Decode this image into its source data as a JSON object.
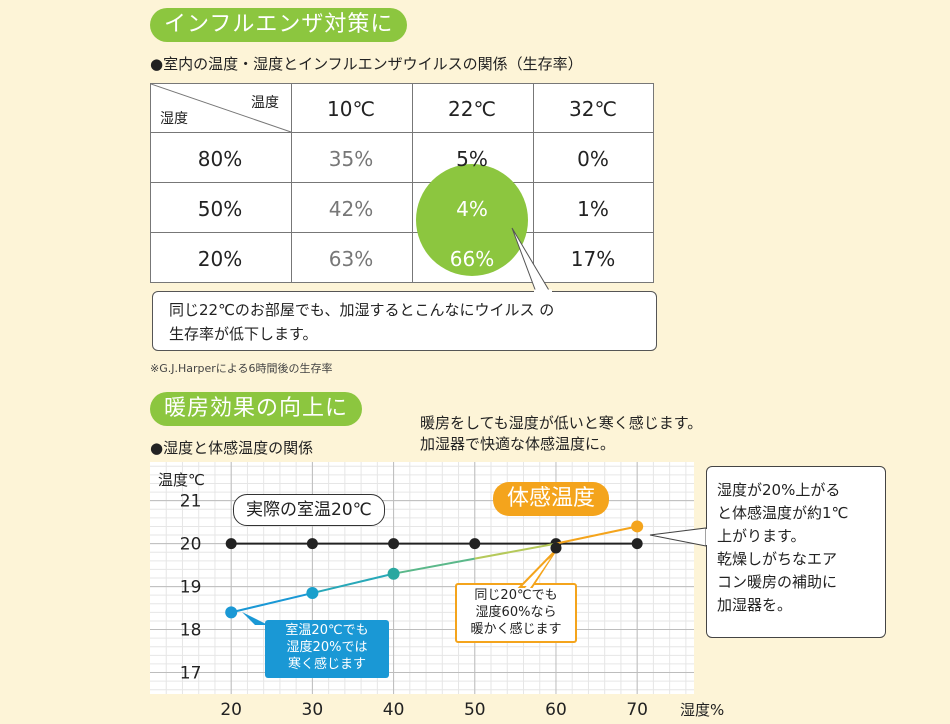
{
  "section1": {
    "title": "インフルエンザ対策に",
    "caption": "●室内の温度・湿度とインフルエンザウイルスの関係（生存率）",
    "corner_temp": "温度",
    "corner_hum": "湿度",
    "columns": [
      "10℃",
      "22℃",
      "32℃"
    ],
    "rows": [
      {
        "humidity": "80%",
        "values": [
          "35%",
          "5%",
          "0%"
        ]
      },
      {
        "humidity": "50%",
        "values": [
          "42%",
          "4%",
          "1%"
        ]
      },
      {
        "humidity": "20%",
        "values": [
          "63%",
          "66%",
          "17%"
        ]
      }
    ],
    "callout_line1": "同じ22℃のお部屋でも、加湿するとこんなにウイルス の",
    "callout_line2": "生存率が低下します。",
    "footnote": "※G.J.Harperによる6時間後の生存率",
    "highlight_color": "#8cc63f"
  },
  "section2": {
    "title": "暖房効果の向上に",
    "caption": "●湿度と体感温度の関係",
    "intro_line1": "暖房をしても湿度が低いと寒く感じます。",
    "intro_line2": "加湿器で快適な体感温度に。",
    "actual_temp_label": "実際の室温20℃",
    "sensed_label": "体感温度",
    "blue_note": [
      "室温20℃でも",
      "湿度20%では",
      "寒く感じます"
    ],
    "orange_note": [
      "同じ20℃でも",
      "湿度60%なら",
      "暖かく感じます"
    ],
    "side_note": [
      "湿度が20%上がる",
      "と体感温度が約1℃",
      "上がります。",
      "乾燥しがちなエア",
      "コン暖房の補助に",
      "加湿器を。"
    ]
  },
  "chart_data": {
    "type": "line",
    "ylabel": "温度℃",
    "xlabel": "湿度%",
    "x_ticks": [
      20,
      30,
      40,
      50,
      60,
      70
    ],
    "y_ticks": [
      17,
      18,
      19,
      20,
      21
    ],
    "xlim": [
      10,
      77
    ],
    "ylim": [
      16.5,
      21.9
    ],
    "series": [
      {
        "name": "実際の室温20℃",
        "color": "#222222",
        "x": [
          20,
          30,
          40,
          50,
          60,
          70
        ],
        "y": [
          20,
          20,
          20,
          20,
          20,
          20
        ]
      },
      {
        "name": "体感温度",
        "color": "#1a98d5",
        "x": [
          20,
          30,
          40,
          50,
          60,
          70
        ],
        "y": [
          18.4,
          18.85,
          19.3,
          19.65,
          20.0,
          20.4
        ]
      }
    ],
    "grid": true
  }
}
